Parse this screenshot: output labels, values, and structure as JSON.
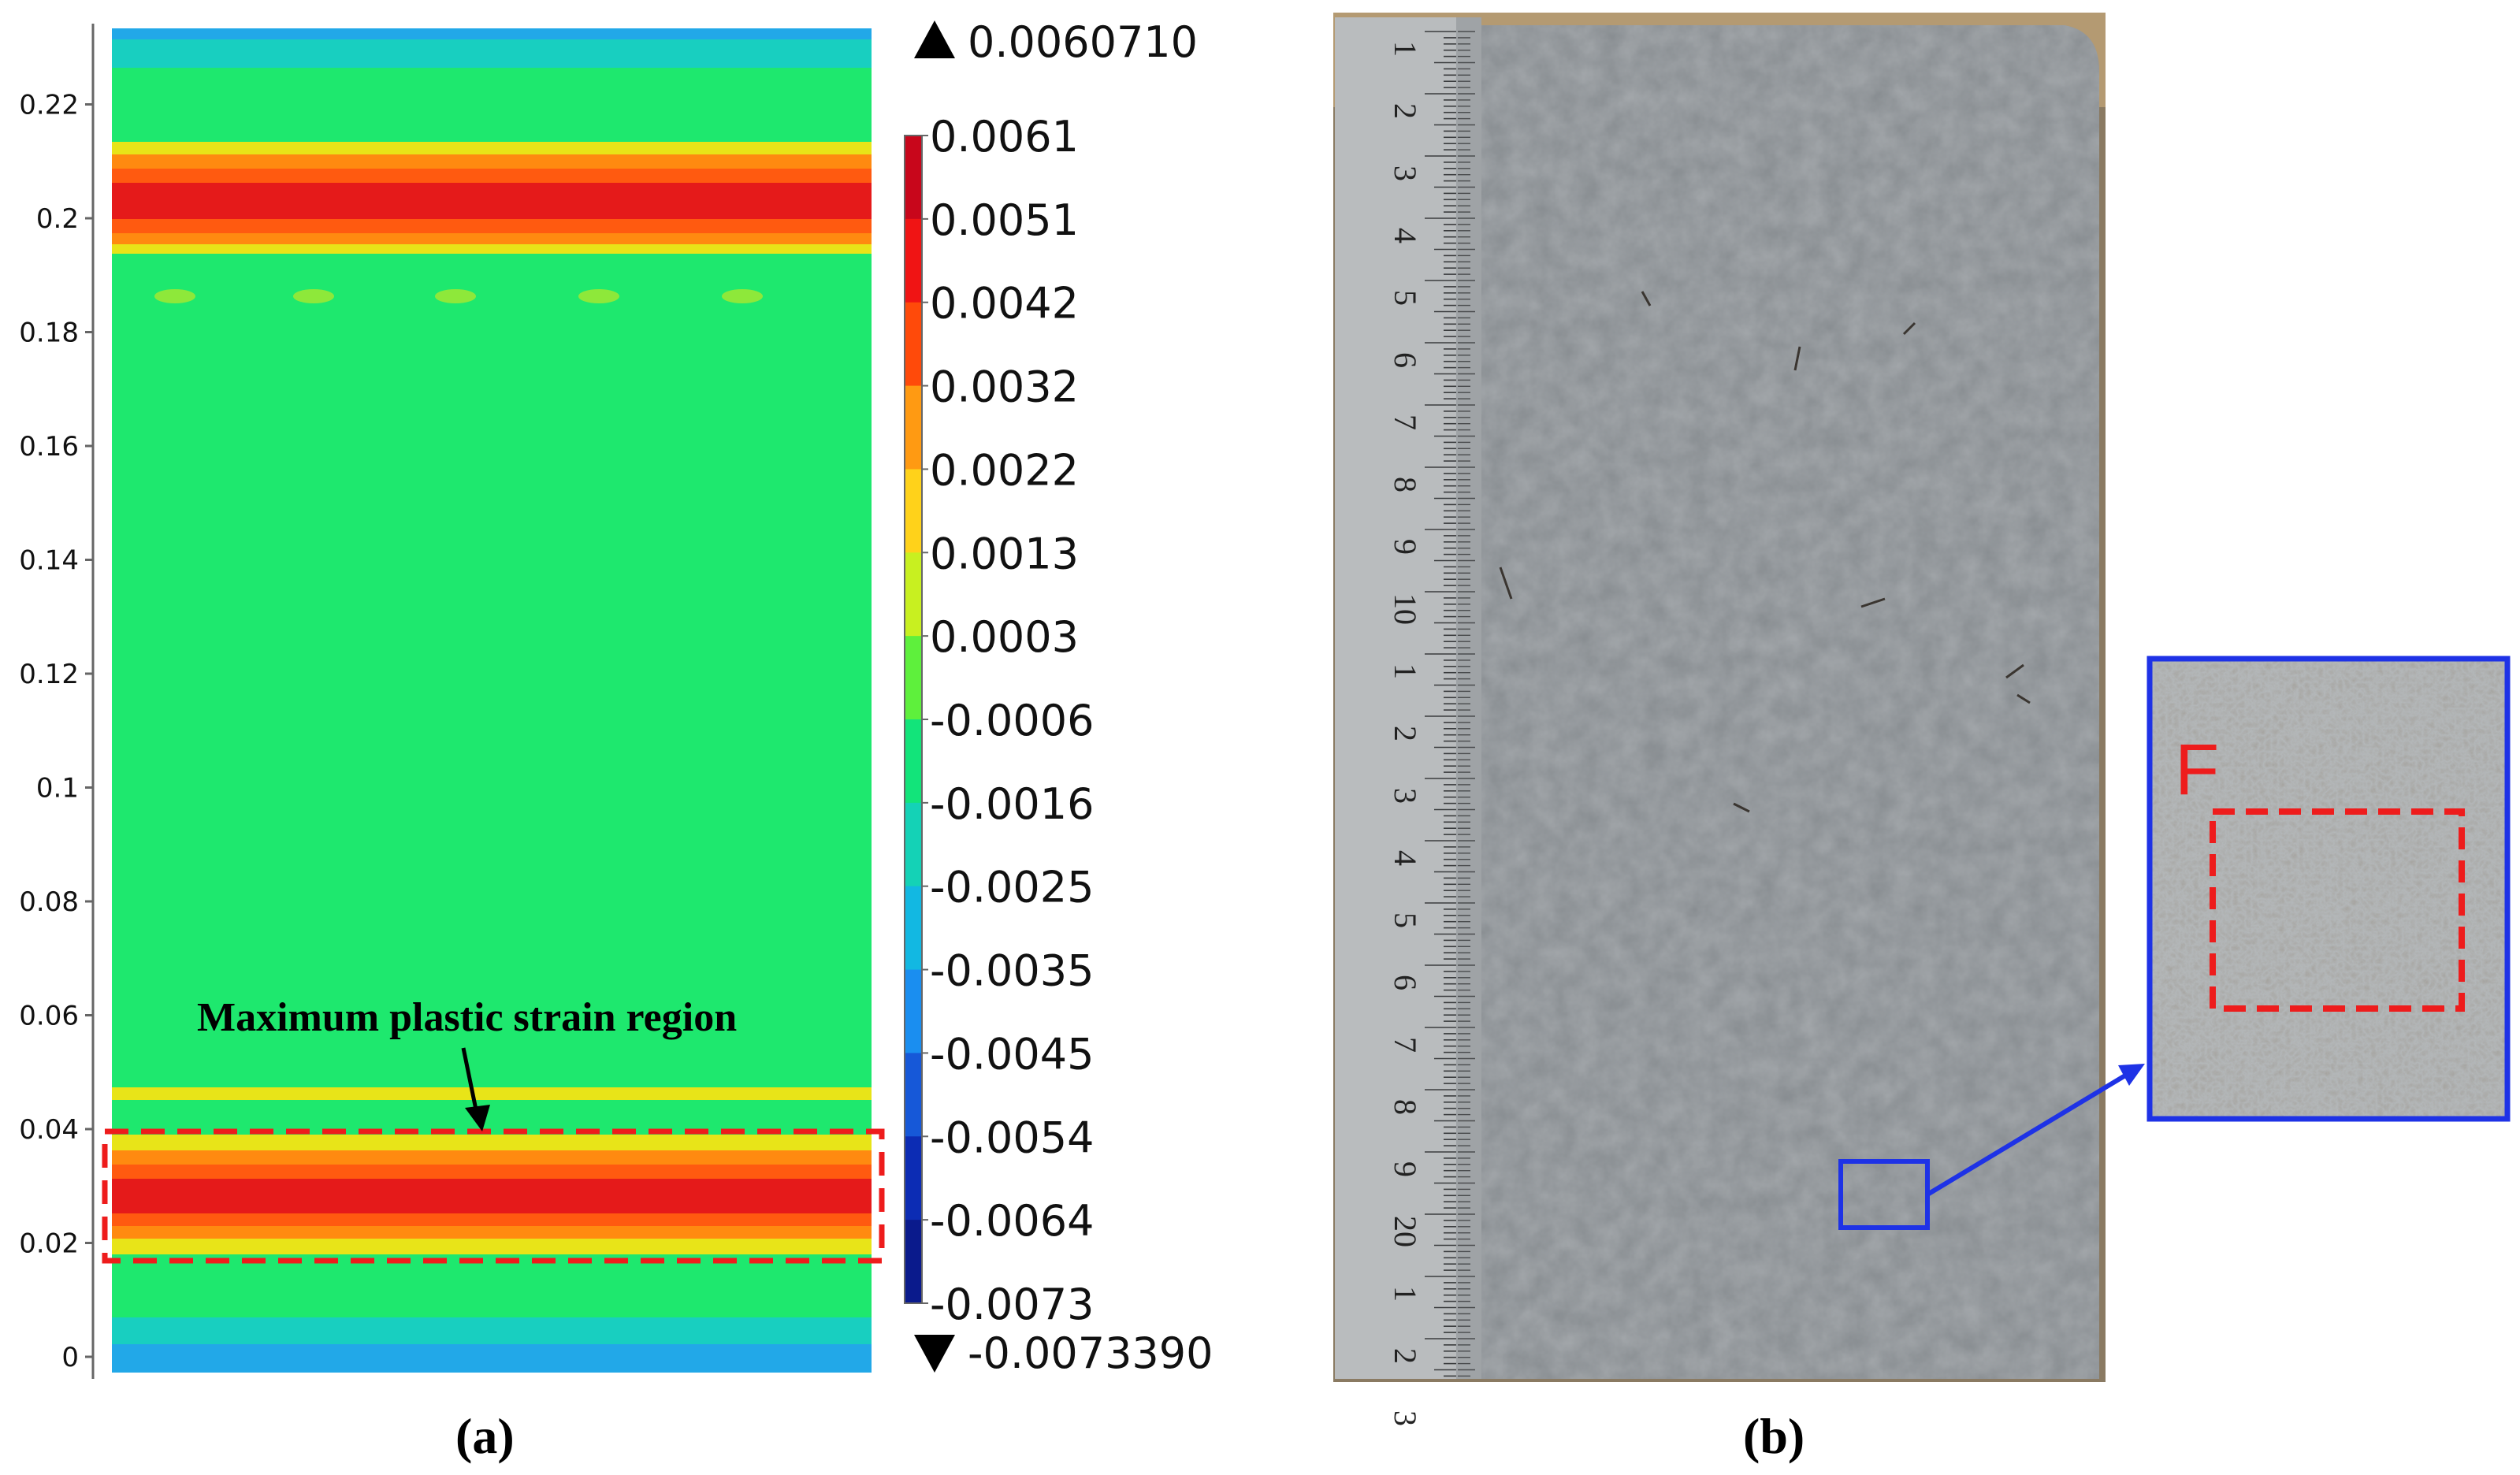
{
  "panel_a": {
    "caption": "(a)",
    "y_axis_ticks": [
      "0",
      "0.02",
      "0.04",
      "0.06",
      "0.08",
      "0.1",
      "0.12",
      "0.14",
      "0.16",
      "0.18",
      "0.2",
      "0.22"
    ],
    "colorbar": {
      "max_label": "0.0060710",
      "min_label": "-0.0073390",
      "labels": [
        "0.0061",
        "0.0051",
        "0.0042",
        "0.0032",
        "0.0022",
        "0.0013",
        "0.0003",
        "-0.0006",
        "-0.0016",
        "-0.0025",
        "-0.0035",
        "-0.0045",
        "-0.0054",
        "-0.0064",
        "-0.0073"
      ],
      "colors": [
        "#c8061b",
        "#f01414",
        "#ff4a0a",
        "#ff9a12",
        "#ffd21a",
        "#c8f020",
        "#5ef03c",
        "#12e47a",
        "#14d2b6",
        "#12b8e2",
        "#1a8ef0",
        "#1658d8",
        "#0c2cb4",
        "#0a1a8c"
      ]
    },
    "annotation": "Maximum plastic strain region",
    "field_colors": {
      "background": "#1ee86e",
      "edge_band": "#22a8e8",
      "hot": "#e51a1a",
      "warm": "#ff8a10",
      "mild": "#e8e418",
      "highlight_box": "#ee1c1c"
    }
  },
  "panel_b": {
    "caption": "(b)",
    "inset_label": "F",
    "ruler_numbers": [
      "1",
      "2",
      "3",
      "4",
      "5",
      "6",
      "7",
      "8",
      "9",
      "10",
      "1",
      "2",
      "3",
      "4",
      "5",
      "6",
      "7",
      "8",
      "9",
      "20",
      "1",
      "2",
      "3"
    ],
    "colors": {
      "plate": "#878c90",
      "ruler": "#b9bcbe",
      "selection_box": "#1e32e6",
      "inset_bg": "#b4b8ba",
      "inset_box": "#ee1c1c"
    }
  }
}
